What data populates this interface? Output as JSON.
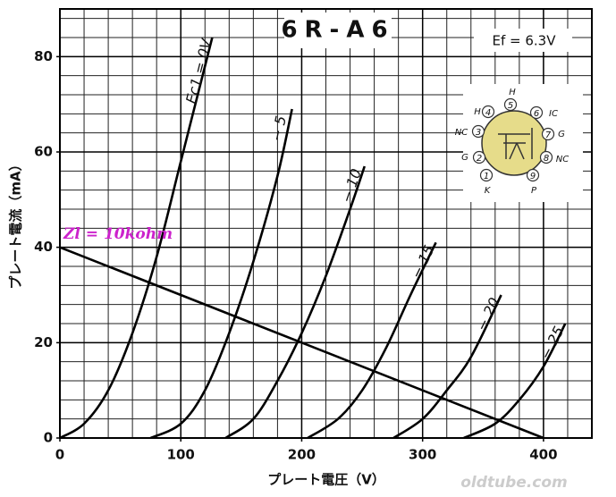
{
  "chart_data": {
    "type": "line",
    "title": "6R-A6",
    "annotation": "Ef = 6.3V",
    "xlabel": "プレート電圧（V）",
    "ylabel": "プレート電流（mA）",
    "watermark": "oldtube.com",
    "xlim": [
      0,
      440
    ],
    "xticks": [
      0,
      100,
      200,
      300,
      400
    ],
    "ylim": [
      0,
      90
    ],
    "yticks": [
      0,
      20,
      40,
      60,
      80
    ],
    "grid": true,
    "series": [
      {
        "name": "Ec1 = 0V",
        "color": "#000000",
        "x": [
          0,
          20,
          40,
          60,
          80,
          100,
          120,
          126
        ],
        "values": [
          0,
          3,
          10,
          22,
          38,
          58,
          78,
          84
        ]
      },
      {
        "name": "− 5",
        "color": "#000000",
        "x": [
          75,
          100,
          120,
          140,
          160,
          180,
          192
        ],
        "values": [
          0,
          3,
          10,
          22,
          37,
          55,
          69
        ]
      },
      {
        "name": "− 10",
        "color": "#000000",
        "x": [
          137,
          160,
          180,
          200,
          220,
          240,
          252
        ],
        "values": [
          0,
          4,
          12,
          22,
          34,
          48,
          57
        ]
      },
      {
        "name": "− 15",
        "color": "#000000",
        "x": [
          205,
          230,
          250,
          270,
          290,
          311
        ],
        "values": [
          0,
          4,
          10,
          19,
          30,
          41
        ]
      },
      {
        "name": "− 20",
        "color": "#000000",
        "x": [
          276,
          300,
          320,
          340,
          365
        ],
        "values": [
          0,
          4,
          10,
          17,
          30
        ]
      },
      {
        "name": "− 25",
        "color": "#000000",
        "x": [
          334,
          360,
          380,
          400,
          418
        ],
        "values": [
          0,
          3,
          8,
          15,
          24
        ]
      },
      {
        "name": "Zl = 10kohm",
        "color": "#cc22cc",
        "x": [
          0,
          400
        ],
        "values": [
          40,
          0
        ]
      }
    ]
  },
  "tube_base": {
    "pins": [
      {
        "pin": "1",
        "label": "K"
      },
      {
        "pin": "2",
        "label": "G"
      },
      {
        "pin": "3",
        "label": "NC"
      },
      {
        "pin": "4",
        "label": "H"
      },
      {
        "pin": "5",
        "label": "H"
      },
      {
        "pin": "6",
        "label": "IC"
      },
      {
        "pin": "7",
        "label": "G"
      },
      {
        "pin": "8",
        "label": "NC"
      },
      {
        "pin": "9",
        "label": "P"
      }
    ]
  }
}
